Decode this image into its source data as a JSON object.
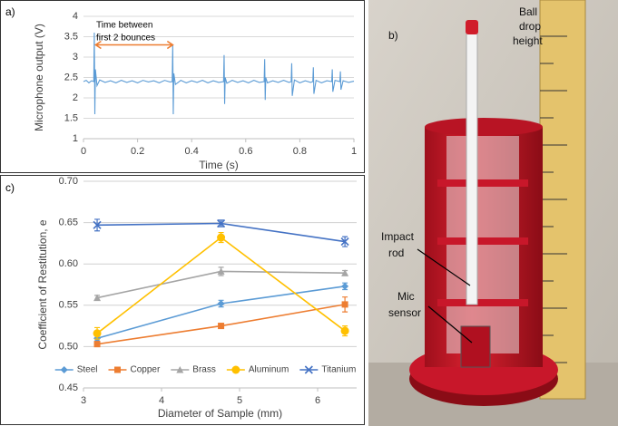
{
  "chart_data": [
    {
      "type": "line",
      "panel_label": "a)",
      "x_label": "Time (s)",
      "y_label": "Microphone output (V)",
      "xlim": [
        0,
        1
      ],
      "xticks": [
        0,
        0.2,
        0.4,
        0.6,
        0.8,
        1
      ],
      "ylim": [
        1,
        4
      ],
      "yticks": [
        1,
        1.5,
        2,
        2.5,
        3,
        3.5,
        4
      ],
      "grid": true,
      "annotation": {
        "lines": [
          "Time between",
          "first 2 bounces"
        ],
        "arrow": {
          "x": [
            0.045,
            0.33
          ],
          "y": 3.3,
          "color": "#ed7d31"
        }
      },
      "x": [
        0,
        0.01,
        0.02,
        0.03,
        0.038,
        0.04,
        0.042,
        0.044,
        0.05,
        0.06,
        0.08,
        0.1,
        0.12,
        0.14,
        0.16,
        0.18,
        0.2,
        0.22,
        0.24,
        0.26,
        0.28,
        0.3,
        0.32,
        0.328,
        0.33,
        0.332,
        0.334,
        0.34,
        0.36,
        0.38,
        0.4,
        0.42,
        0.44,
        0.46,
        0.48,
        0.5,
        0.518,
        0.52,
        0.522,
        0.524,
        0.53,
        0.55,
        0.57,
        0.59,
        0.61,
        0.63,
        0.65,
        0.668,
        0.67,
        0.672,
        0.674,
        0.68,
        0.7,
        0.72,
        0.74,
        0.76,
        0.768,
        0.77,
        0.772,
        0.78,
        0.8,
        0.82,
        0.84,
        0.848,
        0.85,
        0.852,
        0.86,
        0.88,
        0.9,
        0.918,
        0.92,
        0.922,
        0.93,
        0.948,
        0.95,
        0.952,
        0.96,
        0.98,
        1
      ],
      "series": [
        {
          "color": "#5b9bd5",
          "values": [
            2.4,
            2.43,
            2.37,
            2.42,
            2.4,
            3.6,
            1.6,
            2.7,
            2.3,
            2.44,
            2.38,
            2.42,
            2.37,
            2.43,
            2.38,
            2.42,
            2.37,
            2.43,
            2.39,
            2.42,
            2.37,
            2.43,
            2.39,
            2.4,
            3.3,
            1.6,
            2.6,
            2.33,
            2.43,
            2.37,
            2.42,
            2.38,
            2.43,
            2.37,
            2.42,
            2.38,
            2.4,
            3.05,
            1.85,
            2.5,
            2.36,
            2.43,
            2.38,
            2.42,
            2.37,
            2.43,
            2.38,
            2.4,
            2.95,
            1.95,
            2.5,
            2.37,
            2.42,
            2.38,
            2.43,
            2.38,
            2.4,
            2.85,
            2.05,
            2.44,
            2.37,
            2.42,
            2.38,
            2.4,
            2.75,
            2.1,
            2.43,
            2.37,
            2.42,
            2.4,
            2.7,
            2.15,
            2.43,
            2.4,
            2.65,
            2.2,
            2.42,
            2.38,
            2.41
          ]
        }
      ]
    },
    {
      "type": "line",
      "panel_label": "c)",
      "x_label": "Diameter of Sample (mm)",
      "y_label": "Coefficient of Restitution, e",
      "xlim": [
        3,
        6.5
      ],
      "xticks": [
        3,
        4,
        5,
        6
      ],
      "ylim": [
        0.45,
        0.7
      ],
      "yticks": [
        0.45,
        {
          "value": 0.5,
          "label": "0.50"
        },
        0.55,
        {
          "value": 0.6,
          "label": "0.60"
        },
        0.65,
        {
          "value": 0.7,
          "label": "0.70"
        }
      ],
      "grid": true,
      "legend": "bottom",
      "x": [
        3.175,
        4.7625,
        6.35
      ],
      "series": [
        {
          "name": "Steel",
          "color": "#5b9bd5",
          "marker": "diamond",
          "values": [
            0.51,
            0.552,
            0.573
          ],
          "errors": [
            0.003,
            0.004,
            0.004
          ]
        },
        {
          "name": "Copper",
          "color": "#ed7d31",
          "marker": "square",
          "values": [
            0.503,
            0.525,
            0.551
          ],
          "errors": [
            0.003,
            0.003,
            0.009
          ]
        },
        {
          "name": "Brass",
          "color": "#a5a5a5",
          "marker": "triangle",
          "values": [
            0.559,
            0.591,
            0.589
          ],
          "errors": [
            0.003,
            0.005,
            0.003
          ]
        },
        {
          "name": "Aluminum",
          "color": "#ffc000",
          "marker": "circle",
          "values": [
            0.516,
            0.632,
            0.519
          ],
          "errors": [
            0.007,
            0.006,
            0.006
          ]
        },
        {
          "name": "Titanium",
          "color": "#4472c4",
          "marker": "x",
          "values": [
            0.647,
            0.649,
            0.627
          ],
          "errors": [
            0.007,
            0.004,
            0.006
          ]
        }
      ]
    }
  ],
  "photo": {
    "panel_label": "b)",
    "labels": {
      "ball": [
        "Ball",
        "drop",
        "height"
      ],
      "rod": [
        "Impact",
        "rod"
      ],
      "mic": [
        "Mic",
        "sensor"
      ]
    }
  }
}
